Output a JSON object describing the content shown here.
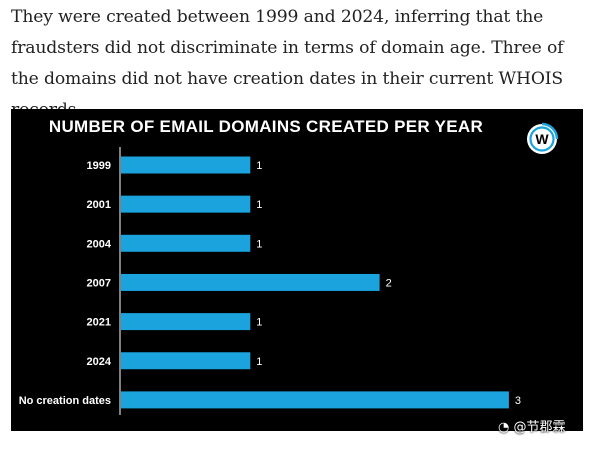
{
  "intro_text": "They were created between 1999 and 2024, inferring that the fraudsters did not discriminate in terms of domain age. Three of the domains did not have creation dates in their current WHOIS records.",
  "chart_data": {
    "type": "bar",
    "orientation": "horizontal",
    "title": "NUMBER OF EMAIL DOMAINS CREATED PER YEAR",
    "xlabel": "",
    "ylabel": "",
    "categories": [
      "1999",
      "2001",
      "2004",
      "2007",
      "2021",
      "2024",
      "No creation dates"
    ],
    "values": [
      1,
      1,
      1,
      2,
      1,
      1,
      3
    ],
    "xlim": [
      0,
      3
    ],
    "grid": false,
    "legend": "none",
    "bar_color": "#1aa3dc",
    "background": "#000000",
    "text_color": "#ffffff"
  },
  "logo": {
    "icon": "w-circle-logo-icon",
    "letter": "W"
  },
  "watermark": {
    "text": "@节郡霖",
    "icon": "weibo-icon"
  }
}
